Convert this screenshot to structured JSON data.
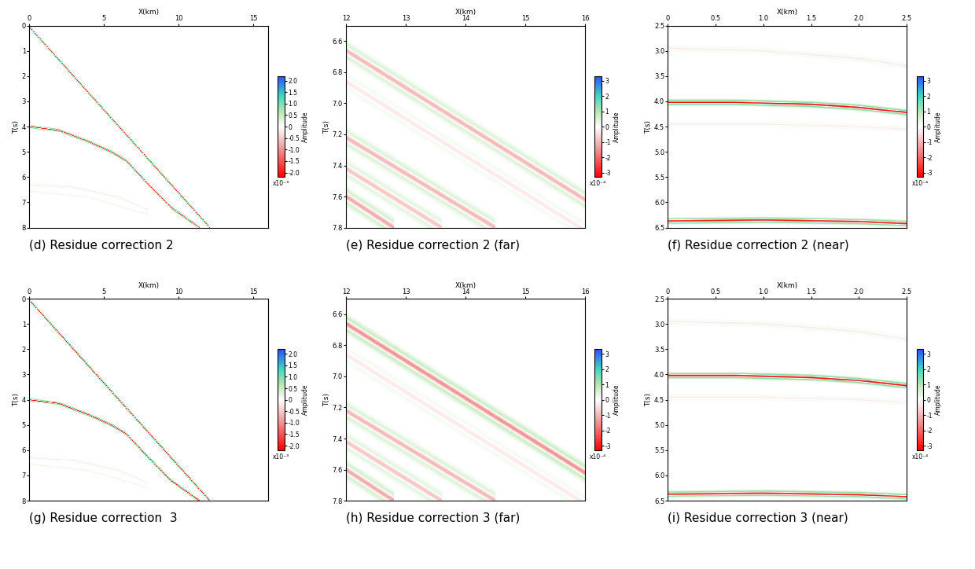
{
  "chart_data": [
    {
      "type": "image",
      "title": "(d) Residue correction 2",
      "xlabel": "X(km)",
      "ylabel": "T(s)",
      "xlim": [
        0,
        16
      ],
      "ylim": [
        8,
        0
      ],
      "xticks": [
        0,
        5,
        10,
        15
      ],
      "yticks": [
        0,
        1,
        2,
        3,
        4,
        5,
        6,
        7,
        8
      ],
      "colorbar_label": "Amplitude",
      "colorbar_range": [
        -2.2,
        2.2
      ],
      "colorbar_ticks": [
        -2.0,
        -1.5,
        -1.0,
        -0.5,
        0,
        0.5,
        1.0,
        1.5,
        2.0
      ],
      "colorbar_scale_label": "x10⁻³",
      "events": [
        {
          "x": [
            0,
            12.1
          ],
          "t": [
            0.05,
            8.0
          ],
          "amplitude": -2.0
        },
        {
          "x": [
            0,
            2,
            4,
            5.5,
            6.5,
            8,
            9.5,
            11.4
          ],
          "t": [
            4.0,
            4.15,
            4.6,
            5.0,
            5.35,
            6.3,
            7.2,
            8.0
          ],
          "amplitude": -2.0
        },
        {
          "x": [
            0,
            3,
            6,
            8
          ],
          "t": [
            6.3,
            6.4,
            6.8,
            7.3
          ],
          "amplitude": -0.2
        },
        {
          "x": [
            0,
            4,
            8
          ],
          "t": [
            6.55,
            6.8,
            7.5
          ],
          "amplitude": -0.15
        }
      ]
    },
    {
      "type": "image",
      "title": "(e) Residue correction 2 (far)",
      "xlabel": "X(km)",
      "ylabel": "T(s)",
      "xlim": [
        12,
        16
      ],
      "ylim": [
        7.8,
        6.5
      ],
      "xticks": [
        12,
        13,
        14,
        15,
        16
      ],
      "yticks": [
        6.6,
        6.8,
        7.0,
        7.2,
        7.4,
        7.6,
        7.8
      ],
      "colorbar_label": "Amplitude",
      "colorbar_range": [
        -3.3,
        3.3
      ],
      "colorbar_ticks": [
        -3,
        -2,
        -1,
        0,
        1,
        2,
        3
      ],
      "colorbar_scale_label": "x10⁻⁴",
      "events": [
        {
          "x": [
            12,
            16
          ],
          "t": [
            6.66,
            7.62
          ],
          "amplitude": -1.0
        },
        {
          "x": [
            12,
            16
          ],
          "t": [
            6.86,
            7.82
          ],
          "amplitude": -0.3
        },
        {
          "x": [
            12,
            14.5
          ],
          "t": [
            7.22,
            7.8
          ],
          "amplitude": -1.0
        },
        {
          "x": [
            12,
            13.6
          ],
          "t": [
            7.42,
            7.8
          ],
          "amplitude": -0.8
        },
        {
          "x": [
            12,
            12.8
          ],
          "t": [
            7.6,
            7.8
          ],
          "amplitude": -1.2
        }
      ]
    },
    {
      "type": "image",
      "title": "(f) Residue correction 2 (near)",
      "xlabel": "X(km)",
      "ylabel": "T(s)",
      "xlim": [
        0,
        2.5
      ],
      "ylim": [
        6.5,
        2.5
      ],
      "xticks": [
        0,
        0.5,
        1.0,
        1.5,
        2.0,
        2.5
      ],
      "yticks": [
        2.5,
        3.0,
        3.5,
        4.0,
        4.5,
        5.0,
        5.5,
        6.0,
        6.5
      ],
      "colorbar_label": "Amplitude",
      "colorbar_range": [
        -3.3,
        3.3
      ],
      "colorbar_ticks": [
        -3,
        -2,
        -1,
        0,
        1,
        2,
        3
      ],
      "colorbar_scale_label": "x10⁻⁴",
      "events": [
        {
          "x": [
            0,
            0.7,
            1.5,
            2.0,
            2.5
          ],
          "t": [
            4.02,
            4.02,
            4.06,
            4.12,
            4.22
          ],
          "amplitude": -3.2
        },
        {
          "x": [
            0,
            1,
            2,
            2.5
          ],
          "t": [
            6.37,
            6.35,
            6.38,
            6.42
          ],
          "amplitude": -3.0
        },
        {
          "x": [
            0,
            1,
            2,
            2.5
          ],
          "t": [
            2.95,
            3.0,
            3.15,
            3.3
          ],
          "amplitude": -0.3
        },
        {
          "x": [
            0,
            1,
            2,
            2.5
          ],
          "t": [
            4.45,
            4.45,
            4.5,
            4.55
          ],
          "amplitude": -0.25
        }
      ]
    },
    {
      "type": "image",
      "title": "(g) Residue correction  3",
      "xlabel": "X(km)",
      "ylabel": "T(s)",
      "xlim": [
        0,
        16
      ],
      "ylim": [
        8,
        0
      ],
      "xticks": [
        0,
        5,
        10,
        15
      ],
      "yticks": [
        0,
        1,
        2,
        3,
        4,
        5,
        6,
        7,
        8
      ],
      "colorbar_label": "Amplitude",
      "colorbar_range": [
        -2.2,
        2.2
      ],
      "colorbar_ticks": [
        -2.0,
        -1.5,
        -1.0,
        -0.5,
        0,
        0.5,
        1.0,
        1.5,
        2.0
      ],
      "colorbar_scale_label": "x10⁻³",
      "events": [
        {
          "x": [
            0,
            12.1
          ],
          "t": [
            0.05,
            8.0
          ],
          "amplitude": -2.2
        },
        {
          "x": [
            0,
            2,
            4,
            5.5,
            6.5,
            8,
            9.5,
            11.4
          ],
          "t": [
            4.0,
            4.15,
            4.6,
            5.0,
            5.35,
            6.3,
            7.2,
            8.0
          ],
          "amplitude": -2.2
        },
        {
          "x": [
            0,
            3,
            6,
            8
          ],
          "t": [
            6.3,
            6.4,
            6.8,
            7.3
          ],
          "amplitude": -0.2
        },
        {
          "x": [
            0,
            4,
            8
          ],
          "t": [
            6.55,
            6.8,
            7.5
          ],
          "amplitude": -0.15
        }
      ]
    },
    {
      "type": "image",
      "title": "(h) Residue correction 3 (far)",
      "xlabel": "X(km)",
      "ylabel": "T(s)",
      "xlim": [
        12,
        16
      ],
      "ylim": [
        7.8,
        6.5
      ],
      "xticks": [
        12,
        13,
        14,
        15,
        16
      ],
      "yticks": [
        6.6,
        6.8,
        7.0,
        7.2,
        7.4,
        7.6,
        7.8
      ],
      "colorbar_label": "Amplitude",
      "colorbar_range": [
        -3.3,
        3.3
      ],
      "colorbar_ticks": [
        -3,
        -2,
        -1,
        0,
        1,
        2,
        3
      ],
      "colorbar_scale_label": "x10⁻⁴",
      "events": [
        {
          "x": [
            12,
            16
          ],
          "t": [
            6.66,
            7.62
          ],
          "amplitude": -1.5
        },
        {
          "x": [
            12,
            16
          ],
          "t": [
            6.86,
            7.82
          ],
          "amplitude": -0.3
        },
        {
          "x": [
            12,
            14.5
          ],
          "t": [
            7.22,
            7.8
          ],
          "amplitude": -1.0
        },
        {
          "x": [
            12,
            13.6
          ],
          "t": [
            7.42,
            7.8
          ],
          "amplitude": -0.8
        },
        {
          "x": [
            12,
            12.8
          ],
          "t": [
            7.6,
            7.8
          ],
          "amplitude": -1.2
        }
      ]
    },
    {
      "type": "image",
      "title": "(i) Residue correction 3 (near)",
      "xlabel": "X(km)",
      "ylabel": "T(s)",
      "xlim": [
        0,
        2.5
      ],
      "ylim": [
        6.5,
        2.5
      ],
      "xticks": [
        0,
        0.5,
        1.0,
        1.5,
        2.0,
        2.5
      ],
      "yticks": [
        2.5,
        3.0,
        3.5,
        4.0,
        4.5,
        5.0,
        5.5,
        6.0,
        6.5
      ],
      "colorbar_label": "Amplitude",
      "colorbar_range": [
        -3.3,
        3.3
      ],
      "colorbar_ticks": [
        -3,
        -2,
        -1,
        0,
        1,
        2,
        3
      ],
      "colorbar_scale_label": "x10⁻⁴",
      "events": [
        {
          "x": [
            0,
            0.7,
            1.5,
            2.0,
            2.5
          ],
          "t": [
            4.02,
            4.02,
            4.06,
            4.12,
            4.22
          ],
          "amplitude": -3.2
        },
        {
          "x": [
            0,
            1,
            2,
            2.5
          ],
          "t": [
            6.37,
            6.35,
            6.38,
            6.42
          ],
          "amplitude": -3.0
        },
        {
          "x": [
            0,
            1,
            2,
            2.5
          ],
          "t": [
            2.95,
            3.0,
            3.15,
            3.3
          ],
          "amplitude": -0.3
        },
        {
          "x": [
            0,
            1,
            2,
            2.5
          ],
          "t": [
            4.45,
            4.45,
            4.5,
            4.55
          ],
          "amplitude": -0.25
        }
      ]
    }
  ]
}
